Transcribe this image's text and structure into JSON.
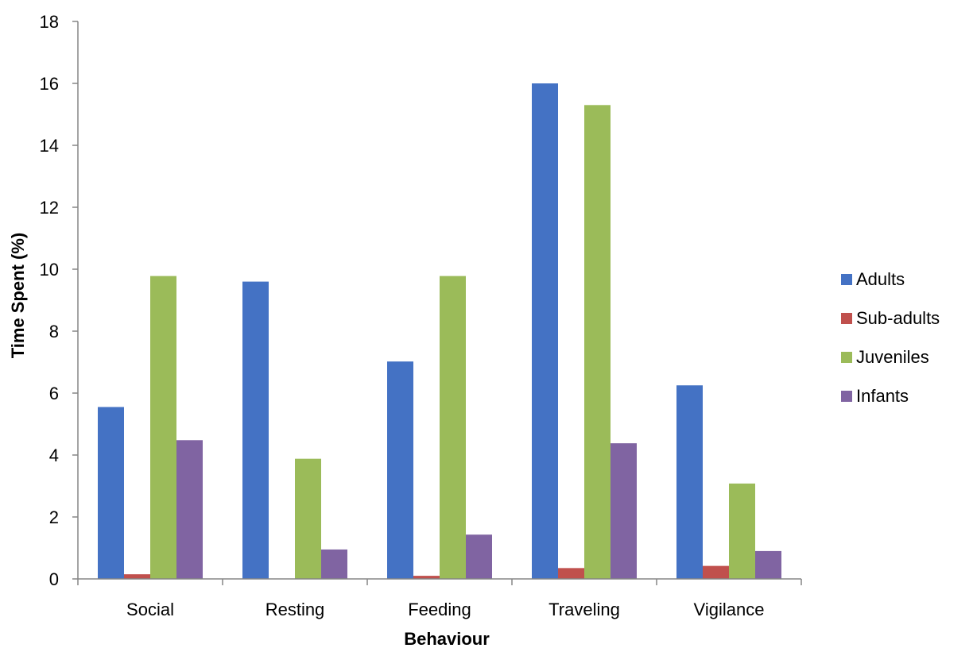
{
  "chart_data": {
    "type": "bar",
    "title": "",
    "xlabel": "Behaviour",
    "ylabel": "Time Spent (%)",
    "categories": [
      "Social",
      "Resting",
      "Feeding",
      "Traveling",
      "Vigilance"
    ],
    "series": [
      {
        "name": "Adults",
        "color": "#4472C4",
        "values": [
          5.55,
          9.6,
          7.02,
          16.0,
          6.25
        ]
      },
      {
        "name": "Sub-adults",
        "color": "#C0504D",
        "values": [
          0.15,
          0.0,
          0.1,
          0.35,
          0.42
        ]
      },
      {
        "name": "Juveniles",
        "color": "#9BBB59",
        "values": [
          9.78,
          3.88,
          9.78,
          15.3,
          3.08
        ]
      },
      {
        "name": "Infants",
        "color": "#8064A2",
        "values": [
          4.48,
          0.95,
          1.43,
          4.38,
          0.9
        ]
      }
    ],
    "ylim": [
      0,
      18
    ],
    "yticks": [
      0,
      2,
      4,
      6,
      8,
      10,
      12,
      14,
      16,
      18
    ],
    "grid": false,
    "legend": "right"
  }
}
